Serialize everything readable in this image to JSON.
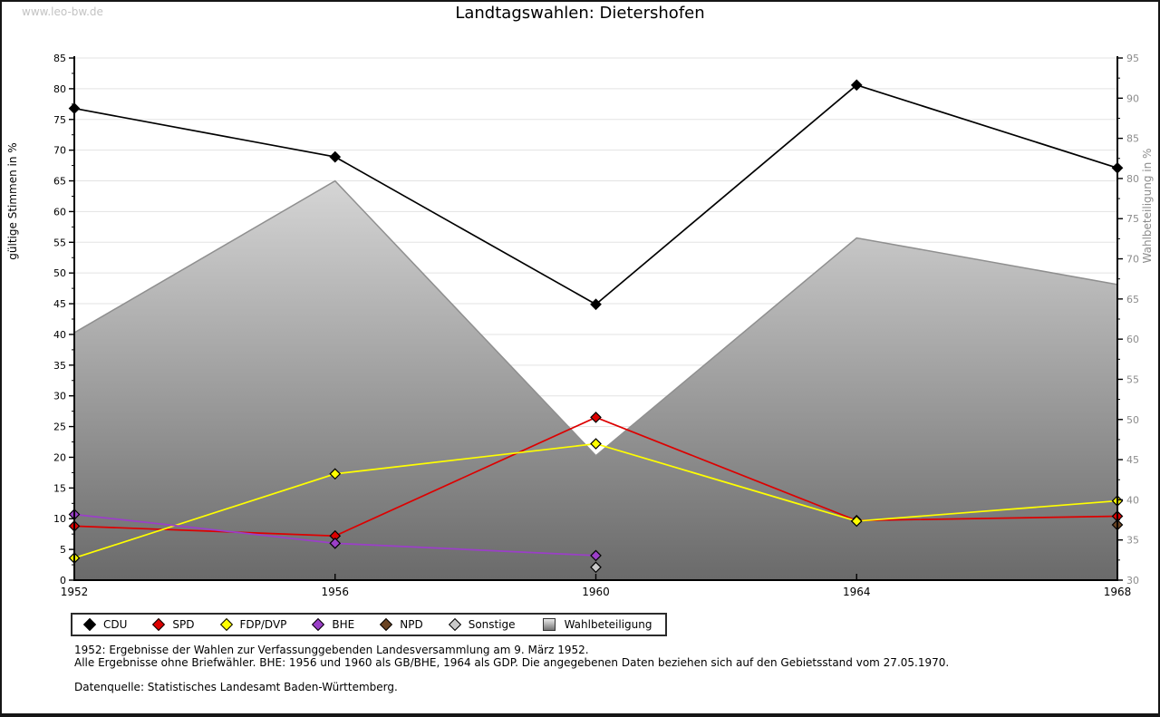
{
  "watermark": "www.leo-bw.de",
  "title": "Landtagswahlen: Dietershofen",
  "chart_data": {
    "type": "line",
    "title": "Landtagswahlen: Dietershofen",
    "x": [
      1952,
      1956,
      1960,
      1964,
      1968
    ],
    "x_labels": [
      "1952",
      "1956",
      "1960",
      "1964",
      "1968"
    ],
    "ylabel_left": "gültige Stimmen in %",
    "ylabel_right": "Wahlbeteiligung in %",
    "ylim_left": [
      0,
      85
    ],
    "ylim_right": [
      30,
      95
    ],
    "ytick_step": 5,
    "grid": true,
    "legend_position": "bottom",
    "tick_color_right": "#8c8c8c",
    "series": [
      {
        "name": "CDU",
        "type": "line",
        "axis": "left",
        "color": "#000000",
        "marker": "diamond",
        "values": [
          76.8,
          68.9,
          44.9,
          80.6,
          67.1
        ]
      },
      {
        "name": "SPD",
        "type": "line",
        "axis": "left",
        "color": "#dd0000",
        "marker": "diamond",
        "values": [
          8.8,
          7.2,
          26.5,
          9.7,
          10.4
        ]
      },
      {
        "name": "FDP/DVP",
        "type": "line",
        "axis": "left",
        "color": "#ffff00",
        "marker": "diamond",
        "values": [
          3.6,
          17.3,
          22.2,
          9.6,
          12.9
        ]
      },
      {
        "name": "BHE",
        "type": "line",
        "axis": "left",
        "color": "#9b3fc8",
        "marker": "diamond",
        "values": [
          10.7,
          6.0,
          4.0,
          null,
          null
        ]
      },
      {
        "name": "NPD",
        "type": "line",
        "axis": "left",
        "color": "#6b4423",
        "marker": "diamond",
        "values": [
          null,
          null,
          null,
          null,
          9.0
        ]
      },
      {
        "name": "Sonstige",
        "type": "line",
        "axis": "left",
        "color": "#c9c9c9",
        "marker": "diamond",
        "values": [
          null,
          null,
          2.1,
          null,
          null
        ]
      },
      {
        "name": "Wahlbeteiligung",
        "type": "area",
        "axis": "right",
        "color_top": "#f6f6f6",
        "color_bottom": "#6a6a6a",
        "stroke": "#8f8f8f",
        "marker": "gradient-square",
        "values": [
          60.8,
          79.7,
          45.5,
          72.6,
          66.8
        ]
      }
    ]
  },
  "footnotes": {
    "line1": "1952: Ergebnisse der Wahlen zur Verfassunggebenden Landesversammlung am 9. März 1952.",
    "line2": "Alle Ergebnisse ohne Briefwähler. BHE: 1956 und 1960 als GB/BHE, 1964 als GDP. Die angegebenen Daten beziehen sich auf den Gebietsstand vom 27.05.1970.",
    "source": "Datenquelle: Statistisches Landesamt Baden-Württemberg."
  }
}
